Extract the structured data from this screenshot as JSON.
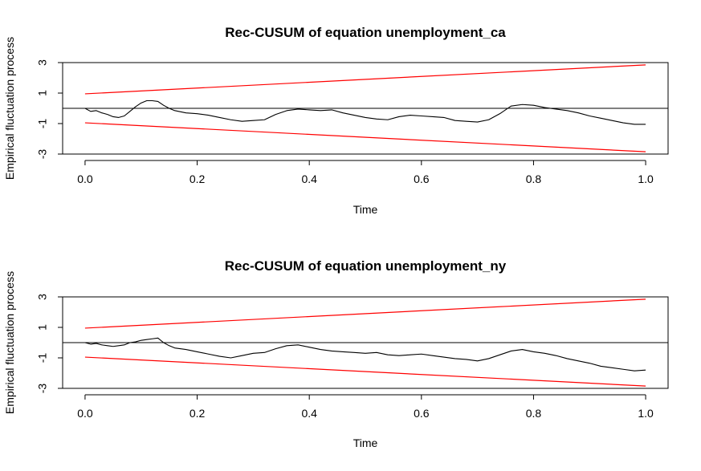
{
  "chart_data": [
    {
      "type": "line",
      "title": "Rec-CUSUM of equation unemployment_ca",
      "xlabel": "Time",
      "ylabel": "Empirical fluctuation process",
      "xlim": [
        -0.04,
        1.04
      ],
      "ylim": [
        -3,
        3
      ],
      "x_ticks": [
        0.0,
        0.2,
        0.4,
        0.6,
        0.8,
        1.0
      ],
      "x_tick_labels": [
        "0.0",
        "0.2",
        "0.4",
        "0.6",
        "0.8",
        "1.0"
      ],
      "y_ticks": [
        -3,
        -1,
        1,
        3
      ],
      "y_tick_labels": [
        "-3",
        "-1",
        "1",
        "3"
      ],
      "grid": false,
      "hline": {
        "y": 0,
        "color": "#000000"
      },
      "boundaries": [
        {
          "x": [
            0,
            1
          ],
          "y": [
            0.95,
            2.85
          ],
          "color": "#ff0000"
        },
        {
          "x": [
            0,
            1
          ],
          "y": [
            -0.95,
            -2.85
          ],
          "color": "#ff0000"
        }
      ],
      "series": [
        {
          "color": "#000000",
          "x": [
            0.0,
            0.01,
            0.02,
            0.03,
            0.04,
            0.05,
            0.06,
            0.07,
            0.08,
            0.09,
            0.1,
            0.11,
            0.12,
            0.13,
            0.14,
            0.15,
            0.16,
            0.18,
            0.2,
            0.22,
            0.24,
            0.26,
            0.28,
            0.3,
            0.32,
            0.34,
            0.36,
            0.38,
            0.4,
            0.42,
            0.44,
            0.46,
            0.48,
            0.5,
            0.52,
            0.54,
            0.56,
            0.58,
            0.6,
            0.62,
            0.64,
            0.66,
            0.68,
            0.7,
            0.72,
            0.74,
            0.76,
            0.78,
            0.8,
            0.82,
            0.84,
            0.86,
            0.88,
            0.9,
            0.92,
            0.94,
            0.96,
            0.98,
            1.0
          ],
          "y": [
            0.0,
            -0.2,
            -0.15,
            -0.3,
            -0.4,
            -0.55,
            -0.6,
            -0.5,
            -0.2,
            0.1,
            0.35,
            0.5,
            0.5,
            0.45,
            0.2,
            0.0,
            -0.15,
            -0.3,
            -0.35,
            -0.45,
            -0.6,
            -0.75,
            -0.85,
            -0.8,
            -0.75,
            -0.4,
            -0.15,
            -0.05,
            -0.1,
            -0.15,
            -0.1,
            -0.3,
            -0.45,
            -0.6,
            -0.7,
            -0.75,
            -0.55,
            -0.45,
            -0.5,
            -0.55,
            -0.6,
            -0.8,
            -0.85,
            -0.9,
            -0.75,
            -0.35,
            0.15,
            0.25,
            0.2,
            0.05,
            -0.05,
            -0.15,
            -0.3,
            -0.5,
            -0.65,
            -0.8,
            -0.95,
            -1.05,
            -1.05
          ]
        }
      ]
    },
    {
      "type": "line",
      "title": "Rec-CUSUM of equation unemployment_ny",
      "xlabel": "Time",
      "ylabel": "Empirical fluctuation process",
      "xlim": [
        -0.04,
        1.04
      ],
      "ylim": [
        -3,
        3
      ],
      "x_ticks": [
        0.0,
        0.2,
        0.4,
        0.6,
        0.8,
        1.0
      ],
      "x_tick_labels": [
        "0.0",
        "0.2",
        "0.4",
        "0.6",
        "0.8",
        "1.0"
      ],
      "y_ticks": [
        -3,
        -1,
        1,
        3
      ],
      "y_tick_labels": [
        "-3",
        "-1",
        "1",
        "3"
      ],
      "grid": false,
      "hline": {
        "y": 0,
        "color": "#000000"
      },
      "boundaries": [
        {
          "x": [
            0,
            1
          ],
          "y": [
            0.95,
            2.85
          ],
          "color": "#ff0000"
        },
        {
          "x": [
            0,
            1
          ],
          "y": [
            -0.95,
            -2.85
          ],
          "color": "#ff0000"
        }
      ],
      "series": [
        {
          "color": "#000000",
          "x": [
            0.0,
            0.01,
            0.02,
            0.03,
            0.04,
            0.05,
            0.06,
            0.07,
            0.08,
            0.09,
            0.1,
            0.11,
            0.12,
            0.13,
            0.14,
            0.15,
            0.16,
            0.18,
            0.2,
            0.22,
            0.24,
            0.26,
            0.28,
            0.3,
            0.32,
            0.34,
            0.36,
            0.38,
            0.4,
            0.42,
            0.44,
            0.46,
            0.48,
            0.5,
            0.52,
            0.54,
            0.56,
            0.58,
            0.6,
            0.62,
            0.64,
            0.66,
            0.68,
            0.7,
            0.72,
            0.74,
            0.76,
            0.78,
            0.8,
            0.82,
            0.84,
            0.86,
            0.88,
            0.9,
            0.92,
            0.94,
            0.96,
            0.98,
            1.0
          ],
          "y": [
            0.0,
            -0.1,
            -0.05,
            -0.15,
            -0.2,
            -0.25,
            -0.2,
            -0.15,
            0.0,
            0.05,
            0.15,
            0.2,
            0.25,
            0.3,
            0.0,
            -0.2,
            -0.35,
            -0.45,
            -0.6,
            -0.75,
            -0.9,
            -1.0,
            -0.85,
            -0.7,
            -0.65,
            -0.4,
            -0.2,
            -0.15,
            -0.3,
            -0.45,
            -0.55,
            -0.6,
            -0.65,
            -0.7,
            -0.65,
            -0.8,
            -0.85,
            -0.8,
            -0.75,
            -0.85,
            -0.95,
            -1.05,
            -1.1,
            -1.2,
            -1.05,
            -0.8,
            -0.55,
            -0.45,
            -0.6,
            -0.7,
            -0.85,
            -1.05,
            -1.2,
            -1.35,
            -1.55,
            -1.65,
            -1.75,
            -1.85,
            -1.8
          ]
        }
      ]
    }
  ]
}
